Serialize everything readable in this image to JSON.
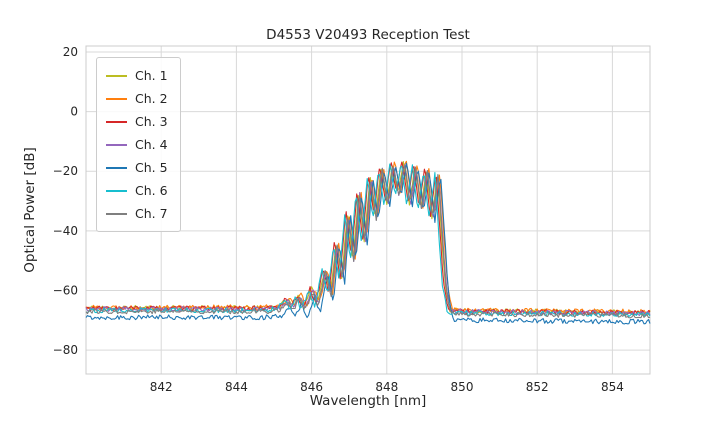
{
  "chart_data": {
    "type": "line",
    "title": "D4553 V20493 Reception Test",
    "xlabel": "Wavelength [nm]",
    "ylabel": "Optical Power [dB]",
    "xlim": [
      840.0,
      855.0
    ],
    "ylim": [
      -88,
      22
    ],
    "xticks": [
      842,
      844,
      846,
      848,
      850,
      852,
      854
    ],
    "yticks": [
      20,
      0,
      -20,
      -40,
      -60,
      -80
    ],
    "grid": true,
    "grid_color": "#d9d9d9",
    "frame_color": "#cccccc",
    "text_color": "#262626",
    "background_color": "#ffffff",
    "legend_position": "upper left",
    "description": "Optical spectra of 7 channels: flat noise floor near -66 dB, side-lobe ripples rising from 845.5 nm, a comb of peaks between 847 and 849.5 nm reaching about -16 dB, sharp fall back to about -67 dB after 849.5 nm. Channel 5 noise floor sits about 3 dB lower than the others.",
    "base_spectrum": {
      "x": [
        840.0,
        844.8,
        845.15,
        845.35,
        845.5,
        845.65,
        845.8,
        846.0,
        846.15,
        846.35,
        846.5,
        846.65,
        846.8,
        846.95,
        847.1,
        847.25,
        847.4,
        847.55,
        847.7,
        847.85,
        848.0,
        848.15,
        848.3,
        848.45,
        848.6,
        848.75,
        848.9,
        849.05,
        849.2,
        849.35,
        849.45,
        849.55,
        849.68,
        850.2,
        851.5,
        853.0,
        855.0
      ],
      "y": [
        -66,
        -66,
        -65.5,
        -63.0,
        -65.5,
        -61.5,
        -65.8,
        -59.5,
        -64.5,
        -53,
        -61,
        -44,
        -56,
        -34,
        -50,
        -27,
        -44,
        -21.5,
        -36,
        -18.5,
        -31,
        -17,
        -28,
        -16.5,
        -31,
        -18,
        -33,
        -19,
        -36,
        -20.5,
        -40,
        -58,
        -66.8,
        -67.0,
        -67.1,
        -67.3,
        -67.5
      ]
    },
    "noise_amplitude_db": 0.8,
    "series": [
      {
        "name": "Ch. 1",
        "color": "#bcbd22",
        "dx": 0.0,
        "dy": 0.0,
        "floor_dy": 0.2,
        "seed": 11
      },
      {
        "name": "Ch. 2",
        "color": "#ff7f0e",
        "dx": 0.06,
        "dy": 0.5,
        "floor_dy": 0.4,
        "seed": 22
      },
      {
        "name": "Ch. 3",
        "color": "#d62728",
        "dx": -0.04,
        "dy": 0.8,
        "floor_dy": 0.0,
        "seed": 33
      },
      {
        "name": "Ch. 4",
        "color": "#9467bd",
        "dx": 0.03,
        "dy": -0.8,
        "floor_dy": -0.2,
        "seed": 44
      },
      {
        "name": "Ch. 5",
        "color": "#1f77b4",
        "dx": 0.08,
        "dy": -0.5,
        "floor_dy": -3.0,
        "seed": 55
      },
      {
        "name": "Ch. 6",
        "color": "#17becf",
        "dx": -0.07,
        "dy": -0.3,
        "floor_dy": -0.6,
        "seed": 66
      },
      {
        "name": "Ch. 7",
        "color": "#7f7f7f",
        "dx": 0.02,
        "dy": -0.2,
        "floor_dy": -1.0,
        "seed": 77
      }
    ]
  }
}
